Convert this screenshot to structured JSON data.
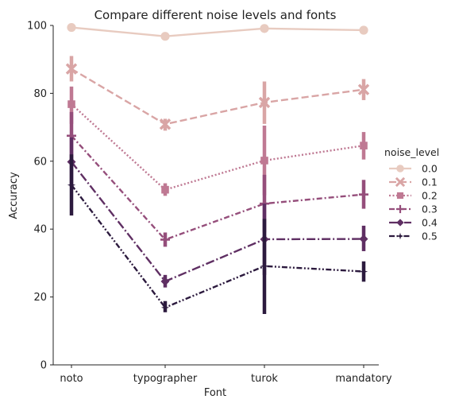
{
  "chart_data": {
    "type": "line",
    "title": "Compare different noise levels and fonts",
    "xlabel": "Font",
    "ylabel": "Accuracy",
    "categories": [
      "noto",
      "typographer",
      "turok",
      "mandatory"
    ],
    "ylim": [
      0,
      100
    ],
    "yticks": [
      0,
      20,
      40,
      60,
      80,
      100
    ],
    "legend_title": "noise_level",
    "legend_position": "right",
    "series": [
      {
        "name": "0.0",
        "color": "#e8cbc0",
        "dash": "solid",
        "marker": "circle",
        "values": [
          99.4,
          96.8,
          99.1,
          98.6
        ],
        "err_low": [
          98.9,
          96.0,
          98.6,
          98.0
        ],
        "err_high": [
          99.8,
          97.6,
          99.6,
          99.2
        ]
      },
      {
        "name": "0.1",
        "color": "#d9a5a5",
        "dash": "dashed",
        "marker": "x",
        "values": [
          87.2,
          70.9,
          77.3,
          81.1
        ],
        "err_low": [
          83.5,
          69.0,
          71.0,
          78.0
        ],
        "err_high": [
          91.0,
          72.5,
          83.5,
          84.2
        ]
      },
      {
        "name": "0.2",
        "color": "#bf7993",
        "dash": "dotted",
        "marker": "square",
        "values": [
          76.8,
          51.6,
          60.2,
          64.6
        ],
        "err_low": [
          71.0,
          49.8,
          50.0,
          60.5
        ],
        "err_high": [
          82.0,
          53.5,
          70.5,
          68.6
        ]
      },
      {
        "name": "0.3",
        "color": "#954e7b",
        "dash": "dashdot",
        "marker": "plus",
        "values": [
          67.5,
          36.9,
          47.5,
          50.2
        ],
        "err_low": [
          60.5,
          34.8,
          39.0,
          46.0
        ],
        "err_high": [
          74.5,
          39.0,
          56.0,
          54.5
        ]
      },
      {
        "name": "0.4",
        "color": "#5f2f63",
        "dash": "longdashdot",
        "marker": "diamond",
        "values": [
          59.8,
          24.6,
          37.0,
          37.1
        ],
        "err_low": [
          52.5,
          22.8,
          26.5,
          33.5
        ],
        "err_high": [
          67.0,
          26.5,
          47.5,
          41.0
        ]
      },
      {
        "name": "0.5",
        "color": "#2c1a3e",
        "dash": "dashdotdot",
        "marker": "star",
        "values": [
          53.0,
          16.9,
          29.1,
          27.5
        ],
        "err_low": [
          44.0,
          15.5,
          15.0,
          24.5
        ],
        "err_high": [
          62.0,
          18.8,
          43.0,
          30.5
        ]
      }
    ]
  }
}
